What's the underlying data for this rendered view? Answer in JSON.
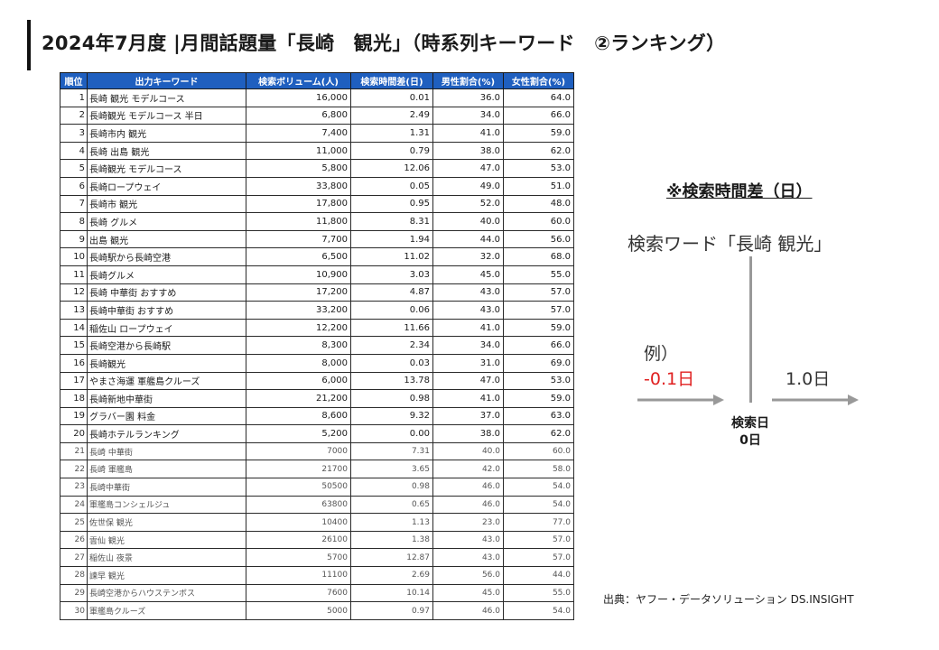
{
  "title": "2024年7月度 |月間話題量「長崎　観光」（時系列キーワード　②ランキング）",
  "table": {
    "headers": [
      "順位",
      "出力キーワード",
      "検索ボリューム(人)",
      "検索時間差(日)",
      "男性割合(%)",
      "女性割合(%)"
    ],
    "rows": [
      [
        "1",
        "長崎 観光 モデルコース",
        "16,000",
        "0.01",
        "36.0",
        "64.0"
      ],
      [
        "2",
        "長崎観光 モデルコース 半日",
        "6,800",
        "2.49",
        "34.0",
        "66.0"
      ],
      [
        "3",
        "長崎市内 観光",
        "7,400",
        "1.31",
        "41.0",
        "59.0"
      ],
      [
        "4",
        "長崎 出島 観光",
        "11,000",
        "0.79",
        "38.0",
        "62.0"
      ],
      [
        "5",
        "長崎観光 モデルコース",
        "5,800",
        "12.06",
        "47.0",
        "53.0"
      ],
      [
        "6",
        "長崎ロープウェイ",
        "33,800",
        "0.05",
        "49.0",
        "51.0"
      ],
      [
        "7",
        "長崎市 観光",
        "17,800",
        "0.95",
        "52.0",
        "48.0"
      ],
      [
        "8",
        "長崎 グルメ",
        "11,800",
        "8.31",
        "40.0",
        "60.0"
      ],
      [
        "9",
        "出島 観光",
        "7,700",
        "1.94",
        "44.0",
        "56.0"
      ],
      [
        "10",
        "長崎駅から長崎空港",
        "6,500",
        "11.02",
        "32.0",
        "68.0"
      ],
      [
        "11",
        "長崎グルメ",
        "10,900",
        "3.03",
        "45.0",
        "55.0"
      ],
      [
        "12",
        "長崎 中華街 おすすめ",
        "17,200",
        "4.87",
        "43.0",
        "57.0"
      ],
      [
        "13",
        "長崎中華街 おすすめ",
        "33,200",
        "0.06",
        "43.0",
        "57.0"
      ],
      [
        "14",
        "稲佐山 ロープウェイ",
        "12,200",
        "11.66",
        "41.0",
        "59.0"
      ],
      [
        "15",
        "長崎空港から長崎駅",
        "8,300",
        "2.34",
        "34.0",
        "66.0"
      ],
      [
        "16",
        "長崎観光",
        "8,000",
        "0.03",
        "31.0",
        "69.0"
      ],
      [
        "17",
        "やまさ海運 軍艦島クルーズ",
        "6,000",
        "13.78",
        "47.0",
        "53.0"
      ],
      [
        "18",
        "長崎新地中華街",
        "21,200",
        "0.98",
        "41.0",
        "59.0"
      ],
      [
        "19",
        "グラバー園 料金",
        "8,600",
        "9.32",
        "37.0",
        "63.0"
      ],
      [
        "20",
        "長崎ホテルランキング",
        "5,200",
        "0.00",
        "38.0",
        "62.0"
      ],
      [
        "21",
        "長崎 中華街",
        "7000",
        "7.31",
        "40.0",
        "60.0"
      ],
      [
        "22",
        "長崎 軍艦島",
        "21700",
        "3.65",
        "42.0",
        "58.0"
      ],
      [
        "23",
        "長崎中華街",
        "50500",
        "0.98",
        "46.0",
        "54.0"
      ],
      [
        "24",
        "軍艦島コンシェルジュ",
        "63800",
        "0.65",
        "46.0",
        "54.0"
      ],
      [
        "25",
        "佐世保 観光",
        "10400",
        "1.13",
        "23.0",
        "77.0"
      ],
      [
        "26",
        "雲仙 観光",
        "26100",
        "1.38",
        "43.0",
        "57.0"
      ],
      [
        "27",
        "稲佐山 夜景",
        "5700",
        "12.87",
        "43.0",
        "57.0"
      ],
      [
        "28",
        "諫早 観光",
        "11100",
        "2.69",
        "56.0",
        "44.0"
      ],
      [
        "29",
        "長崎空港からハウステンボス",
        "7600",
        "10.14",
        "45.0",
        "55.0"
      ],
      [
        "30",
        "軍艦島クルーズ",
        "5000",
        "0.97",
        "46.0",
        "54.0"
      ]
    ]
  },
  "note": {
    "title": "※検索時間差（日）",
    "keyword": "検索ワード「長崎 観光」",
    "example_label": "例）",
    "negative": "-0.1日",
    "positive": "1.0日",
    "search_day_line1": "検索日",
    "search_day_line2": "0日"
  },
  "source": "出典：ヤフー・データソリューション DS.INSIGHT",
  "colors": {
    "header_bg": "#1f5fbf",
    "negative": "#e02020",
    "arrow": "#999999"
  }
}
